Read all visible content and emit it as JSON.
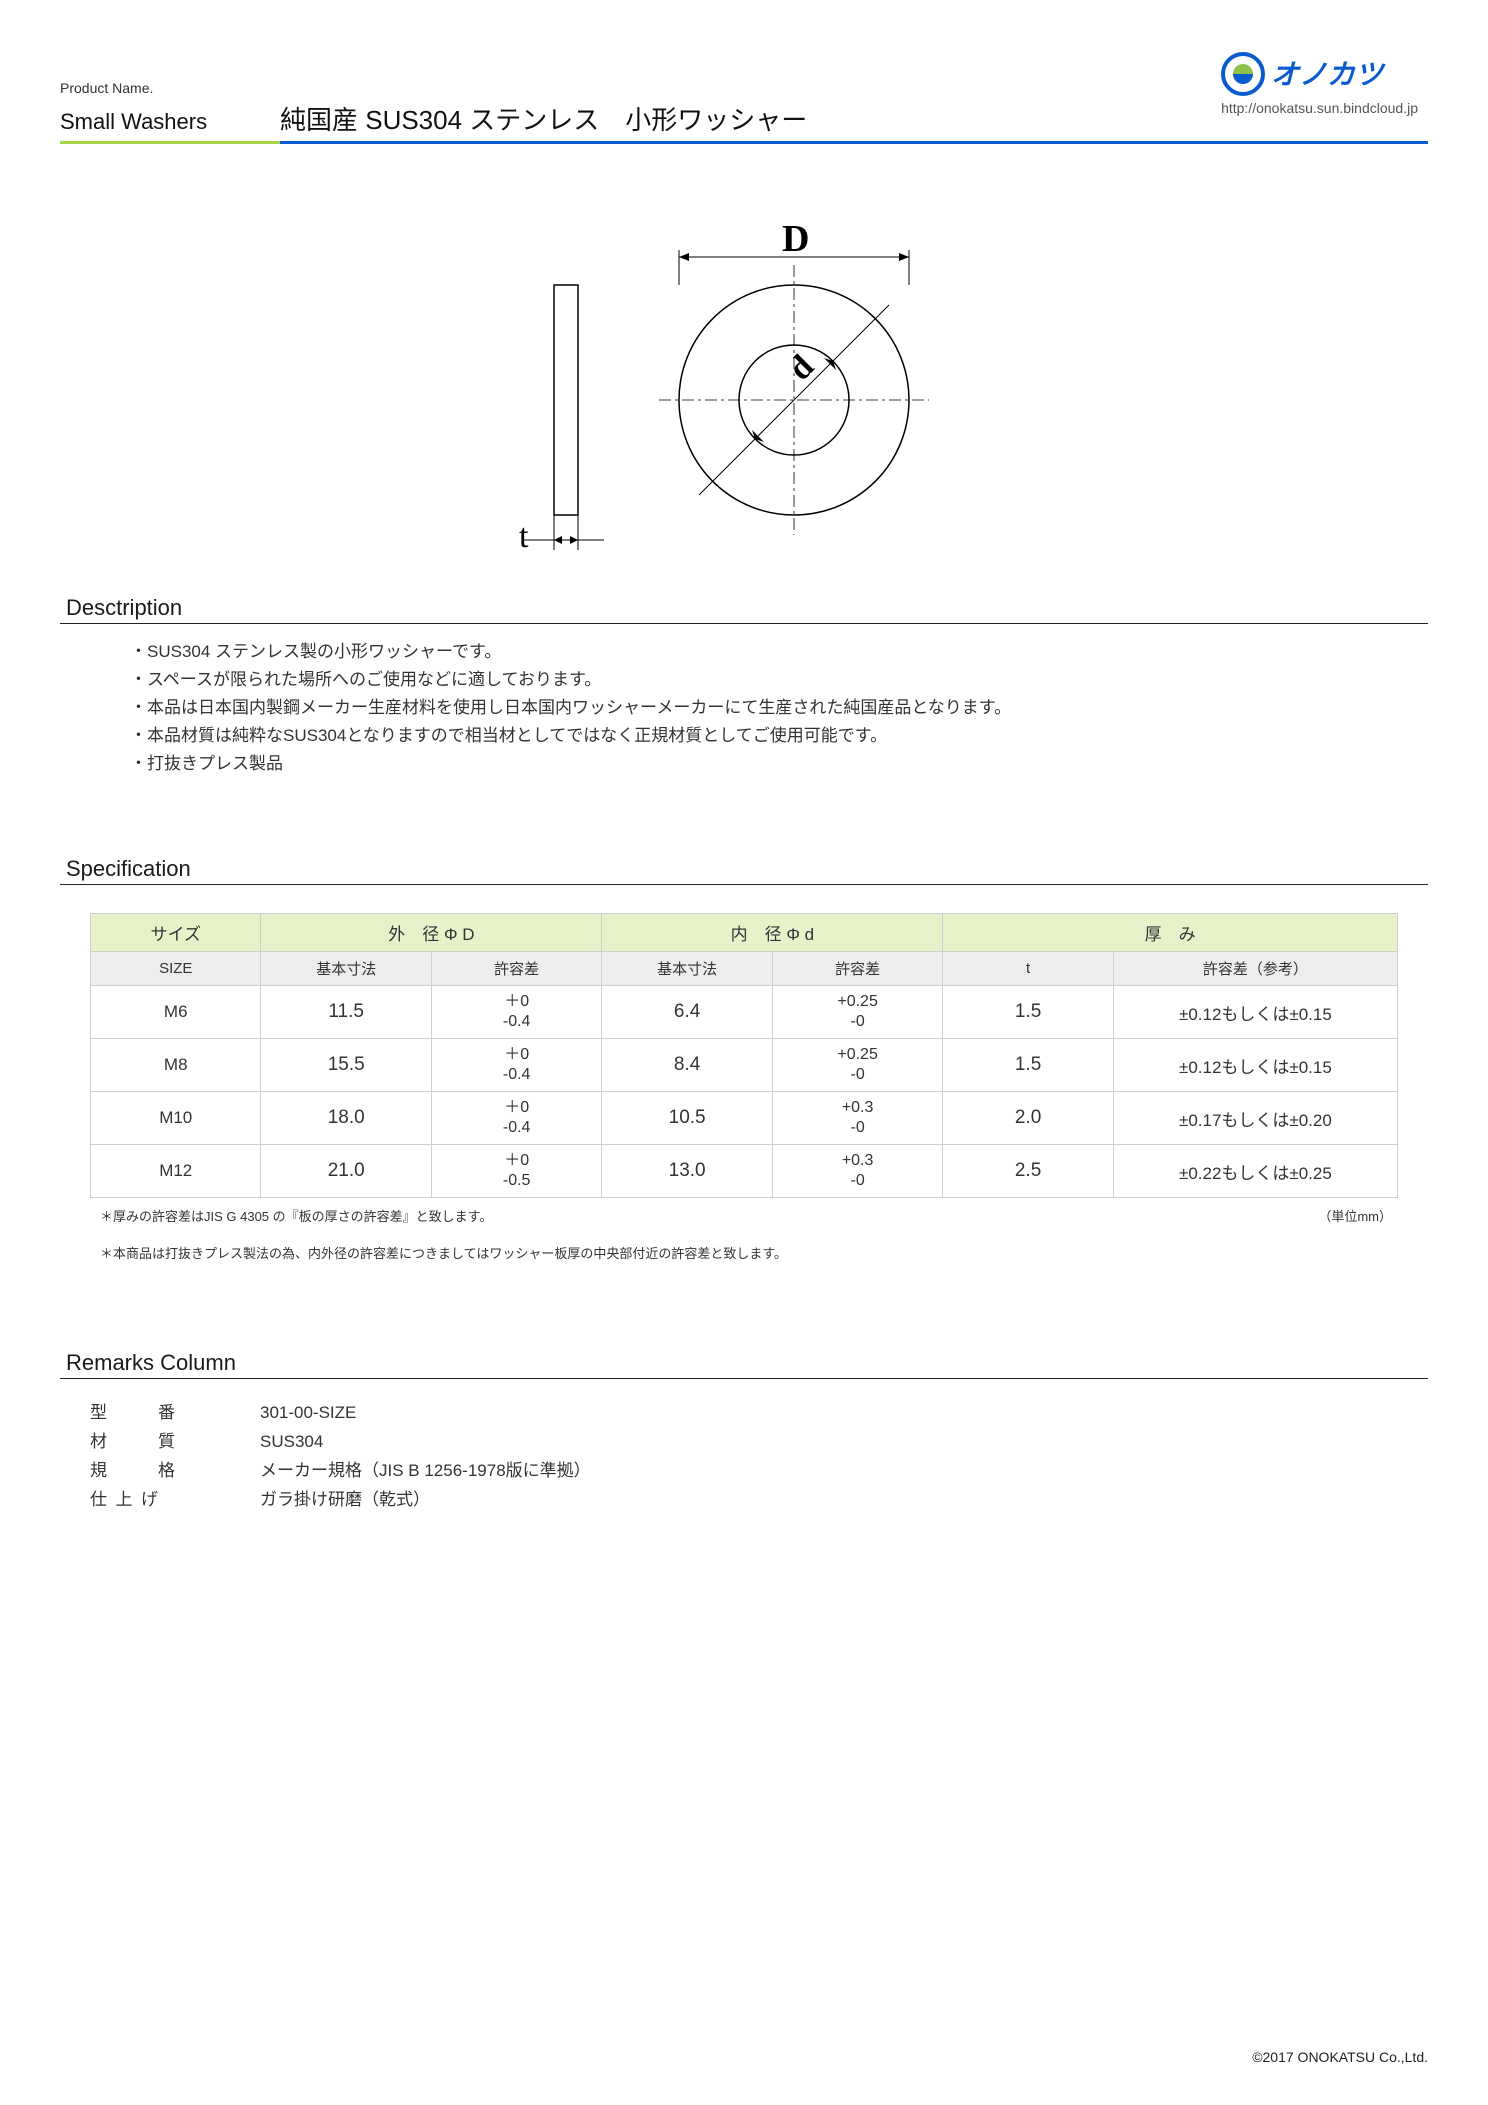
{
  "header": {
    "product_name_label": "Product Name.",
    "product_name_en": "Small Washers",
    "product_name_jp": "純国産 SUS304 ステンレス　小形ワッシャー",
    "logo_text": "オノカツ",
    "logo_url": "http://onokatsu.sun.bindcloud.jp",
    "underline_colors": {
      "green": "#a8d64a",
      "blue": "#0a5ad0"
    }
  },
  "diagram": {
    "label_D": "D",
    "label_d": "d",
    "label_t": "t",
    "stroke": "#000000",
    "outer_r": 115,
    "inner_r": 55,
    "side_w": 24,
    "side_h": 230
  },
  "sections": {
    "description_title": "Desctription",
    "specification_title": "Specification",
    "remarks_title": "Remarks Column"
  },
  "description": {
    "items": [
      "SUS304 ステンレス製の小形ワッシャーです。",
      "スペースが限られた場所へのご使用などに適しております。",
      "本品は日本国内製鋼メーカー生産材料を使用し日本国内ワッシャーメーカーにて生産された純国産品となります。",
      "本品材質は純粋なSUS304となりますので相当材としてではなく正規材質としてご使用可能です。",
      "打抜きプレス製品"
    ]
  },
  "spec": {
    "header_row1": {
      "size": "サイズ",
      "outerD": "外　径 Φ D",
      "innerd": "内　径 Φ d",
      "thickness": "厚　み"
    },
    "header_row2": {
      "size": "SIZE",
      "basic": "基本寸法",
      "tol": "許容差",
      "t": "t",
      "tol_ref": "許容差（参考）"
    },
    "rows": [
      {
        "size": "M6",
        "D": "11.5",
        "D_tol_top": "＋0",
        "D_tol_bot": "-0.4",
        "d": "6.4",
        "d_tol_top": "+0.25",
        "d_tol_bot": "-0",
        "t": "1.5",
        "t_tol": "±0.12もしくは±0.15"
      },
      {
        "size": "M8",
        "D": "15.5",
        "D_tol_top": "＋0",
        "D_tol_bot": "-0.4",
        "d": "8.4",
        "d_tol_top": "+0.25",
        "d_tol_bot": "-0",
        "t": "1.5",
        "t_tol": "±0.12もしくは±0.15"
      },
      {
        "size": "M10",
        "D": "18.0",
        "D_tol_top": "＋0",
        "D_tol_bot": "-0.4",
        "d": "10.5",
        "d_tol_top": "+0.3",
        "d_tol_bot": "-0",
        "t": "2.0",
        "t_tol": "±0.17もしくは±0.20"
      },
      {
        "size": "M12",
        "D": "21.0",
        "D_tol_top": "＋0",
        "D_tol_bot": "-0.5",
        "d": "13.0",
        "d_tol_top": "+0.3",
        "d_tol_bot": "-0",
        "t": "2.5",
        "t_tol": "±0.22もしくは±0.25"
      }
    ],
    "note1": "＊厚みの許容差はJIS G 4305 の『板の厚さの許容差』と致します。",
    "unit": "（単位mm）",
    "note2": "＊本商品は打抜きプレス製法の為、内外径の許容差につきましてはワッシャー板厚の中央部付近の許容差と致します。"
  },
  "remarks": {
    "rows": [
      {
        "label": "型　番",
        "value": "301-00-SIZE"
      },
      {
        "label": "材　質",
        "value": "SUS304"
      },
      {
        "label": "規　格",
        "value": "メーカー規格（JIS B 1256-1978版に準拠）"
      },
      {
        "label": "仕上げ",
        "value": "ガラ掛け研磨（乾式）"
      }
    ]
  },
  "footer": {
    "copyright": "©2017 ONOKATSU  Co.,Ltd."
  },
  "colors": {
    "table_header1_bg": "#e8f2c9",
    "table_header2_bg": "#ededed",
    "table_border": "#cfcfcf",
    "text": "#333333"
  }
}
